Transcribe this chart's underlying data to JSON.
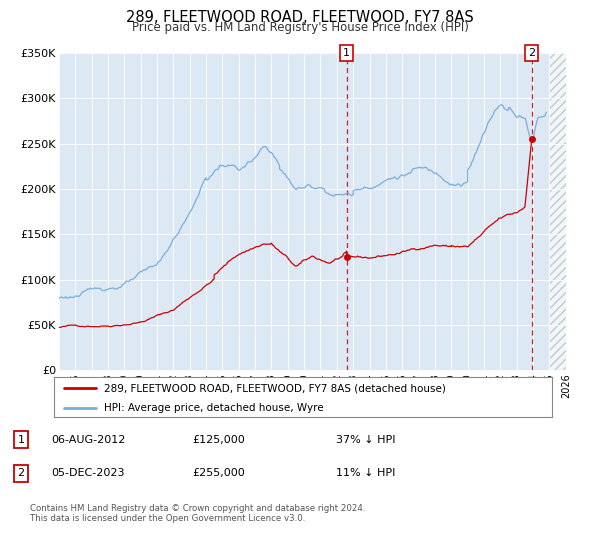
{
  "title": "289, FLEETWOOD ROAD, FLEETWOOD, FY7 8AS",
  "subtitle": "Price paid vs. HM Land Registry's House Price Index (HPI)",
  "legend_red": "289, FLEETWOOD ROAD, FLEETWOOD, FY7 8AS (detached house)",
  "legend_blue": "HPI: Average price, detached house, Wyre",
  "annotation1_date": "06-AUG-2012",
  "annotation1_price": "£125,000",
  "annotation1_hpi": "37% ↓ HPI",
  "annotation2_date": "05-DEC-2023",
  "annotation2_price": "£255,000",
  "annotation2_hpi": "11% ↓ HPI",
  "footer1": "Contains HM Land Registry data © Crown copyright and database right 2024.",
  "footer2": "This data is licensed under the Open Government Licence v3.0.",
  "ylim": [
    0,
    350000
  ],
  "yticks": [
    0,
    50000,
    100000,
    150000,
    200000,
    250000,
    300000,
    350000
  ],
  "ytick_labels": [
    "£0",
    "£50K",
    "£100K",
    "£150K",
    "£200K",
    "£250K",
    "£300K",
    "£350K"
  ],
  "background_color": "#dce9f5",
  "marker1_x": 2012.6,
  "marker1_y": 125000,
  "marker2_x": 2023.917,
  "marker2_y": 255000,
  "vline1_x": 2012.6,
  "vline2_x": 2023.917,
  "red_color": "#cc0000",
  "blue_color": "#7aaddc",
  "vline_color": "#cc0000",
  "xlim_left": 1995.0,
  "xlim_right": 2026.0,
  "hatch_start": 2025.0
}
